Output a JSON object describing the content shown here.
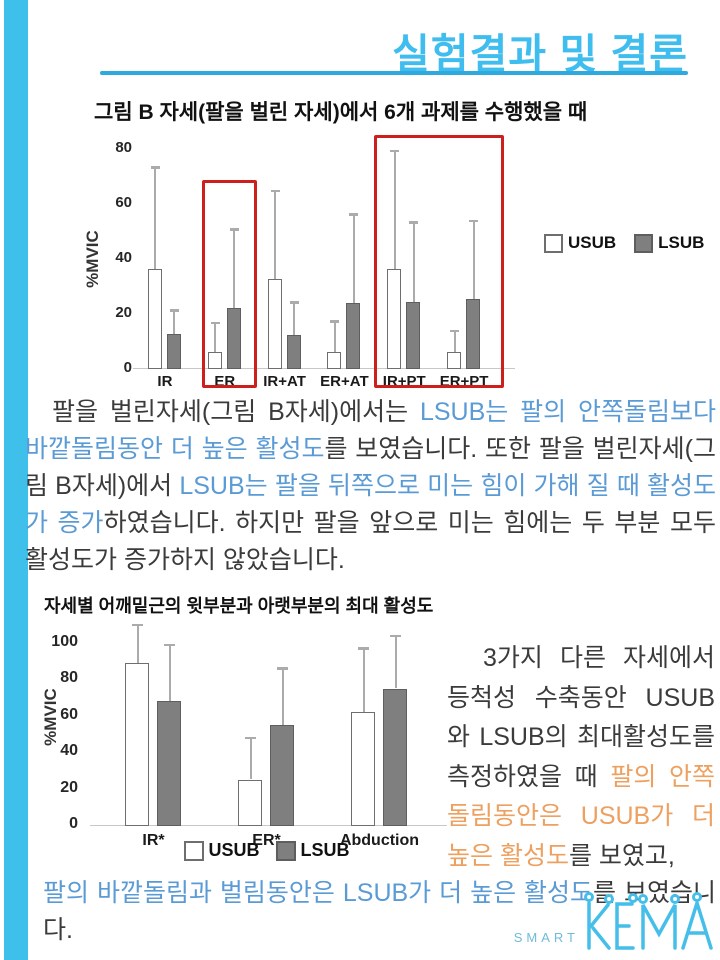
{
  "colors": {
    "dark": "#3B3B3B",
    "blue": "#5B9BD5",
    "orange": "#EDA05F",
    "accent_title": "#3EBDEE",
    "accent_rule": "#2EAADF",
    "accent_bar": "#3FC0EB",
    "red": "#CD201C",
    "bar_usub_fill": "#FFFFFF",
    "bar_lsub_fill": "#7F7F7F",
    "bar_border": "#6E6E6E",
    "error_bar": "#ABABAB",
    "logo_blue": "#45BEE9"
  },
  "header": {
    "title": "실험결과 및 결론"
  },
  "section1": {
    "heading": "그림 B 자세(팔을 벌린 자세)에서 6개 과제를 수행했을 때",
    "paragraph": [
      {
        "text": "팔을 벌린자세(그림 B자세)에서는 ",
        "color": "dark"
      },
      {
        "text": "LSUB는 팔의 안쪽돌림보다 바깥돌림동안 더 높은 활성도",
        "color": "blue"
      },
      {
        "text": "를 보였습니다. 또한 팔을 벌린자세(그림 B자세)에서 ",
        "color": "dark"
      },
      {
        "text": "LSUB는 팔을 뒤쪽으로 미는 힘이 가해 질 때 활성도가 증가",
        "color": "blue"
      },
      {
        "text": "하였습니다. 하지만 팔을 앞으로 미는 힘에는 두 부분 모두 활성도가 증가하지 않았습니다.",
        "color": "dark"
      }
    ]
  },
  "section2": {
    "heading": "자세별 어깨밑근의 윗부분과 아랫부분의 최대 활성도",
    "side_paragraph": [
      {
        "text": "3가지 다른 자세에서 등척성 수축동안 USUB 와 LSUB의 최대활성도를 측정하였을 때 ",
        "color": "dark"
      },
      {
        "text": "팔의 안쪽돌림동안은 USUB가 더 높은 활성도",
        "color": "orange"
      },
      {
        "text": "를 보였고,",
        "color": "dark"
      }
    ],
    "bottom_paragraph": [
      {
        "text": "팔의 바깥돌림과 벌림동안은 LSUB가 더 높은 활성도",
        "color": "blue"
      },
      {
        "text": "를 보였습니다.",
        "color": "dark"
      }
    ]
  },
  "logo": {
    "smart": "SMART",
    "kema": "KEMA"
  },
  "chart_data": [
    {
      "type": "bar",
      "title": "그림 B 자세(팔을 벌린 자세)에서 6개 과제를 수행했을 때",
      "categories": [
        "IR",
        "ER",
        "IR+AT",
        "ER+AT",
        "IR+PT",
        "ER+PT"
      ],
      "series": [
        {
          "name": "USUB",
          "values": [
            36,
            6,
            32.5,
            6,
            36,
            6
          ],
          "errors_plus": [
            37,
            10.5,
            32,
            11,
            43,
            7.5
          ],
          "fill": "#FFFFFF",
          "border": "#6E6E6E"
        },
        {
          "name": "LSUB",
          "values": [
            12.5,
            22,
            12,
            23.5,
            24,
            25
          ],
          "errors_plus": [
            8.5,
            28.5,
            12,
            32.5,
            29,
            28.5
          ],
          "fill": "#7F7F7F",
          "border": "#5E5E5E"
        }
      ],
      "xlabel": "",
      "ylabel": "%MVIC",
      "ylim": [
        0,
        80
      ],
      "yticks": [
        0,
        20,
        40,
        60,
        80
      ],
      "grid": false,
      "legend_position": "right",
      "highlights": [
        {
          "from": "ER",
          "to": "ER"
        },
        {
          "from": "IR+PT",
          "to": "ER+PT"
        }
      ]
    },
    {
      "type": "bar",
      "title": "자세별 어깨밑근의 윗부분과 아랫부분의 최대 활성도",
      "categories": [
        "IR*",
        "ER*",
        "Abduction"
      ],
      "series": [
        {
          "name": "USUB",
          "values": [
            89,
            25,
            62
          ],
          "errors_plus": [
            21,
            23,
            35
          ],
          "fill": "#FFFFFF",
          "border": "#6E6E6E"
        },
        {
          "name": "LSUB",
          "values": [
            68,
            55,
            75
          ],
          "errors_plus": [
            31,
            31,
            29
          ],
          "fill": "#7F7F7F",
          "border": "#5E5E5E"
        }
      ],
      "xlabel": "",
      "ylabel": "%MVIC",
      "ylim": [
        0,
        110
      ],
      "yticks": [
        0,
        20,
        40,
        60,
        80,
        100
      ],
      "grid": false,
      "legend_position": "bottom",
      "highlights": []
    }
  ]
}
